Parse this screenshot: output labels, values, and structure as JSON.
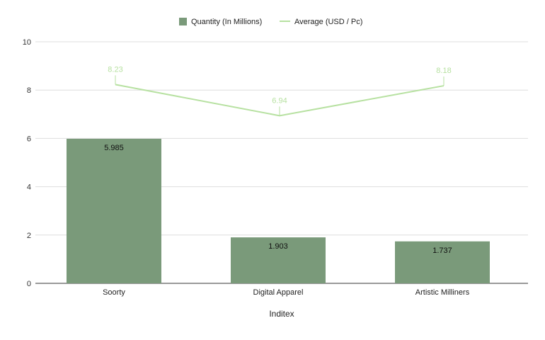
{
  "chart_data": {
    "type": "bar",
    "categories": [
      "Soorty",
      "Digital Apparel",
      "Artistic Milliners"
    ],
    "series": [
      {
        "name": "Quantity (In Millions)",
        "chart_kind": "bar",
        "values": [
          5.985,
          1.903,
          1.737
        ],
        "labels": [
          "5.985",
          "1.903",
          "1.737"
        ],
        "color": "#7a9a7a"
      },
      {
        "name": "Average (USD / Pc)",
        "chart_kind": "line",
        "values": [
          8.23,
          6.94,
          8.18
        ],
        "labels": [
          "8.23",
          "6.94",
          "8.18"
        ],
        "color": "#b7e1a1"
      }
    ],
    "title": "",
    "xlabel": "Inditex",
    "ylabel": "",
    "ylim": [
      0,
      10
    ],
    "yticks": [
      "0",
      "2",
      "4",
      "6",
      "8",
      "10"
    ],
    "grid": true,
    "legend_position": "top-center"
  }
}
